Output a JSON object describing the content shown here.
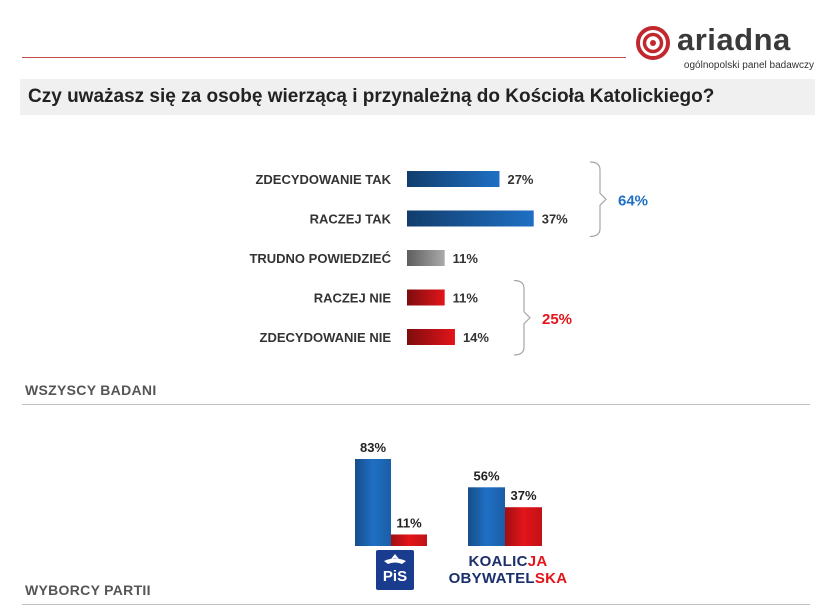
{
  "logo": {
    "name": "ariadna",
    "tagline": "ogólnopolski panel badawczy"
  },
  "title": "Czy uważasz się za osobę wierzącą i przynależną do Kościoła Katolickiego?",
  "sections": {
    "all": "WSZYSCY BADANI",
    "voters": "WYBORCY PARTII"
  },
  "colors": {
    "blue": "#1f6fc4",
    "gray": "#aaaaaa",
    "red": "#e3151a",
    "brand_red": "#c0504d"
  },
  "chart_data": [
    {
      "type": "bar",
      "orientation": "horizontal",
      "categories": [
        "ZDECYDOWANIE TAK",
        "RACZEJ TAK",
        "TRUDNO POWIEDZIEĆ",
        "RACZEJ NIE",
        "ZDECYDOWANIE NIE"
      ],
      "values": [
        27,
        37,
        11,
        11,
        14
      ],
      "value_labels": [
        "27%",
        "37%",
        "11%",
        "11%",
        "14%"
      ],
      "bar_colors": [
        "#1f6fc4",
        "#1f6fc4",
        "#aaaaaa",
        "#e3151a",
        "#e3151a"
      ],
      "groups": [
        {
          "label": "64%",
          "color": "#1f6fc4",
          "from": 0,
          "to": 1
        },
        {
          "label": "25%",
          "color": "#e3151a",
          "from": 3,
          "to": 4
        }
      ],
      "xlim": [
        0,
        40
      ]
    },
    {
      "type": "bar",
      "orientation": "vertical",
      "categories": [
        "PiS",
        "KOALICJA OBYWATELSKA"
      ],
      "series": [
        {
          "values": [
            83,
            56
          ],
          "labels": [
            "83%",
            "56%"
          ],
          "color": "#1f6fc4"
        },
        {
          "values": [
            11,
            37
          ],
          "labels": [
            "11%",
            "37%"
          ],
          "color": "#e3151a"
        }
      ],
      "ylim": [
        0,
        100
      ]
    }
  ],
  "party_logos": {
    "pis": "PiS",
    "ko_line1_a": "KOALIC",
    "ko_line1_b": "JA",
    "ko_line2_a": "OBYWATEL",
    "ko_line2_b": "SKA"
  }
}
